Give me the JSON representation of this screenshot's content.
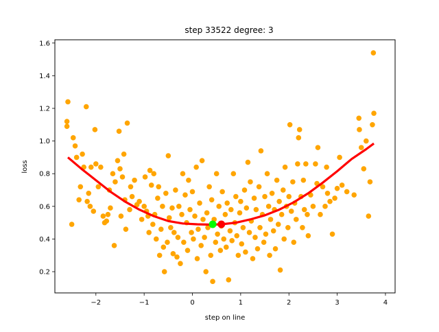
{
  "chart_data": {
    "type": "scatter",
    "title": "step 33522   degree: 3",
    "xlabel": "step on line",
    "ylabel": "loss",
    "xlim": [
      -2.85,
      4.2
    ],
    "ylim": [
      0.07,
      1.62
    ],
    "xticks": [
      -2,
      -1,
      0,
      1,
      2,
      3,
      4
    ],
    "xtick_labels": [
      "−2",
      "−1",
      "0",
      "1",
      "2",
      "3",
      "4"
    ],
    "yticks": [
      0.2,
      0.4,
      0.6,
      0.8,
      1.0,
      1.2,
      1.4,
      1.6
    ],
    "ytick_labels": [
      "0.2",
      "0.4",
      "0.6",
      "0.8",
      "1.0",
      "1.2",
      "1.4",
      "1.6"
    ],
    "grid": false,
    "colors": {
      "scatter": "#ffa500",
      "fit": "#ff0000",
      "green_marker": "#00ff00",
      "red_marker": "#ff0000"
    },
    "scatter_points": [
      [
        -2.6,
        1.12
      ],
      [
        -2.6,
        1.09
      ],
      [
        -2.58,
        1.24
      ],
      [
        -2.5,
        0.49
      ],
      [
        -2.47,
        1.02
      ],
      [
        -2.43,
        0.97
      ],
      [
        -2.4,
        0.9
      ],
      [
        -2.35,
        0.64
      ],
      [
        -2.32,
        0.72
      ],
      [
        -2.28,
        0.92
      ],
      [
        -2.25,
        0.84
      ],
      [
        -2.2,
        1.21
      ],
      [
        -2.18,
        0.63
      ],
      [
        -2.15,
        0.68
      ],
      [
        -2.12,
        0.6
      ],
      [
        -2.1,
        0.84
      ],
      [
        -2.05,
        0.57
      ],
      [
        -2.02,
        1.07
      ],
      [
        -2.0,
        0.86
      ],
      [
        -1.95,
        0.72
      ],
      [
        -1.9,
        0.84
      ],
      [
        -1.85,
        0.54
      ],
      [
        -1.82,
        0.5
      ],
      [
        -1.78,
        0.51
      ],
      [
        -1.75,
        0.55
      ],
      [
        -1.72,
        0.7
      ],
      [
        -1.7,
        0.59
      ],
      [
        -1.65,
        0.8
      ],
      [
        -1.62,
        0.36
      ],
      [
        -1.6,
        0.75
      ],
      [
        -1.55,
        0.88
      ],
      [
        -1.52,
        1.06
      ],
      [
        -1.5,
        0.83
      ],
      [
        -1.48,
        0.54
      ],
      [
        -1.45,
        0.78
      ],
      [
        -1.42,
        0.92
      ],
      [
        -1.4,
        0.64
      ],
      [
        -1.38,
        0.46
      ],
      [
        -1.35,
        1.11
      ],
      [
        -1.3,
        0.58
      ],
      [
        -1.28,
        0.72
      ],
      [
        -1.25,
        0.66
      ],
      [
        -1.2,
        0.76
      ],
      [
        -1.15,
        0.61
      ],
      [
        -1.1,
        0.63
      ],
      [
        -1.05,
        0.52
      ],
      [
        -1.0,
        0.6
      ],
      [
        -0.98,
        0.78
      ],
      [
        -0.95,
        0.57
      ],
      [
        -0.92,
        0.54
      ],
      [
        -0.9,
        0.44
      ],
      [
        -0.88,
        0.82
      ],
      [
        -0.85,
        0.73
      ],
      [
        -0.82,
        0.49
      ],
      [
        -0.8,
        0.8
      ],
      [
        -0.78,
        0.55
      ],
      [
        -0.75,
        0.4
      ],
      [
        -0.72,
        0.65
      ],
      [
        -0.7,
        0.72
      ],
      [
        -0.68,
        0.3
      ],
      [
        -0.65,
        0.46
      ],
      [
        -0.62,
        0.6
      ],
      [
        -0.6,
        0.35
      ],
      [
        -0.58,
        0.2
      ],
      [
        -0.55,
        0.68
      ],
      [
        -0.52,
        0.38
      ],
      [
        -0.5,
        0.91
      ],
      [
        -0.48,
        0.53
      ],
      [
        -0.45,
        0.47
      ],
      [
        -0.42,
        0.59
      ],
      [
        -0.4,
        0.31
      ],
      [
        -0.38,
        0.44
      ],
      [
        -0.35,
        0.7
      ],
      [
        -0.32,
        0.29
      ],
      [
        -0.3,
        0.41
      ],
      [
        -0.28,
        0.6
      ],
      [
        -0.25,
        0.25
      ],
      [
        -0.22,
        0.55
      ],
      [
        -0.2,
        0.8
      ],
      [
        -0.18,
        0.38
      ],
      [
        -0.15,
        0.67
      ],
      [
        -0.12,
        0.5
      ],
      [
        -0.1,
        0.33
      ],
      [
        -0.08,
        0.76
      ],
      [
        -0.05,
        0.58
      ],
      [
        -0.02,
        0.44
      ],
      [
        0.0,
        0.69
      ],
      [
        0.02,
        0.4
      ],
      [
        0.05,
        0.54
      ],
      [
        0.08,
        0.84
      ],
      [
        0.1,
        0.28
      ],
      [
        0.12,
        0.46
      ],
      [
        0.15,
        0.62
      ],
      [
        0.18,
        0.36
      ],
      [
        0.2,
        0.88
      ],
      [
        0.22,
        0.52
      ],
      [
        0.25,
        0.41
      ],
      [
        0.28,
        0.2
      ],
      [
        0.3,
        0.56
      ],
      [
        0.32,
        0.47
      ],
      [
        0.35,
        0.72
      ],
      [
        0.38,
        0.3
      ],
      [
        0.4,
        0.64
      ],
      [
        0.42,
        0.14
      ],
      [
        0.45,
        0.52
      ],
      [
        0.48,
        0.38
      ],
      [
        0.5,
        0.8
      ],
      [
        0.52,
        0.43
      ],
      [
        0.55,
        0.6
      ],
      [
        0.58,
        0.33
      ],
      [
        0.6,
        0.48
      ],
      [
        0.62,
        0.69
      ],
      [
        0.65,
        0.4
      ],
      [
        0.68,
        0.55
      ],
      [
        0.7,
        0.35
      ],
      [
        0.72,
        0.62
      ],
      [
        0.75,
        0.15
      ],
      [
        0.78,
        0.45
      ],
      [
        0.8,
        0.58
      ],
      [
        0.82,
        0.39
      ],
      [
        0.85,
        0.8
      ],
      [
        0.88,
        0.5
      ],
      [
        0.9,
        0.66
      ],
      [
        0.92,
        0.42
      ],
      [
        0.95,
        0.3
      ],
      [
        0.98,
        0.56
      ],
      [
        1.0,
        0.63
      ],
      [
        1.02,
        0.37
      ],
      [
        1.05,
        0.47
      ],
      [
        1.08,
        0.7
      ],
      [
        1.1,
        0.32
      ],
      [
        1.12,
        0.59
      ],
      [
        1.15,
        0.87
      ],
      [
        1.18,
        0.44
      ],
      [
        1.2,
        0.75
      ],
      [
        1.22,
        0.51
      ],
      [
        1.25,
        0.28
      ],
      [
        1.28,
        0.65
      ],
      [
        1.3,
        0.41
      ],
      [
        1.32,
        0.58
      ],
      [
        1.35,
        0.34
      ],
      [
        1.38,
        0.72
      ],
      [
        1.4,
        0.47
      ],
      [
        1.42,
        0.94
      ],
      [
        1.45,
        0.55
      ],
      [
        1.48,
        0.38
      ],
      [
        1.5,
        0.66
      ],
      [
        1.52,
        0.43
      ],
      [
        1.55,
        0.8
      ],
      [
        1.58,
        0.6
      ],
      [
        1.6,
        0.3
      ],
      [
        1.62,
        0.52
      ],
      [
        1.65,
        0.68
      ],
      [
        1.68,
        0.45
      ],
      [
        1.7,
        0.58
      ],
      [
        1.72,
        0.34
      ],
      [
        1.75,
        0.76
      ],
      [
        1.78,
        0.49
      ],
      [
        1.8,
        0.63
      ],
      [
        1.82,
        0.21
      ],
      [
        1.85,
        0.55
      ],
      [
        1.88,
        0.7
      ],
      [
        1.9,
        0.4
      ],
      [
        1.92,
        0.84
      ],
      [
        1.95,
        0.6
      ],
      [
        1.98,
        0.47
      ],
      [
        2.0,
        0.66
      ],
      [
        2.02,
        1.1
      ],
      [
        2.05,
        0.57
      ],
      [
        2.08,
        0.75
      ],
      [
        2.1,
        0.38
      ],
      [
        2.12,
        0.62
      ],
      [
        2.15,
        0.52
      ],
      [
        2.18,
        0.86
      ],
      [
        2.2,
        1.02
      ],
      [
        2.22,
        1.07
      ],
      [
        2.25,
        0.66
      ],
      [
        2.28,
        0.47
      ],
      [
        2.3,
        0.76
      ],
      [
        2.32,
        0.58
      ],
      [
        2.35,
        0.86
      ],
      [
        2.38,
        0.55
      ],
      [
        2.4,
        0.42
      ],
      [
        2.45,
        0.67
      ],
      [
        2.5,
        0.6
      ],
      [
        2.55,
        0.86
      ],
      [
        2.58,
        0.74
      ],
      [
        2.6,
        0.96
      ],
      [
        2.65,
        0.55
      ],
      [
        2.7,
        0.72
      ],
      [
        2.75,
        0.6
      ],
      [
        2.78,
        0.84
      ],
      [
        2.8,
        0.68
      ],
      [
        2.85,
        0.63
      ],
      [
        2.9,
        0.43
      ],
      [
        2.95,
        0.65
      ],
      [
        3.0,
        0.71
      ],
      [
        3.05,
        0.9
      ],
      [
        3.1,
        0.73
      ],
      [
        3.2,
        0.69
      ],
      [
        3.35,
        0.67
      ],
      [
        3.45,
        1.14
      ],
      [
        3.46,
        1.07
      ],
      [
        3.5,
        0.96
      ],
      [
        3.55,
        0.83
      ],
      [
        3.6,
        1.0
      ],
      [
        3.65,
        0.54
      ],
      [
        3.68,
        0.75
      ],
      [
        3.73,
        1.1
      ],
      [
        3.75,
        1.54
      ],
      [
        3.76,
        1.17
      ]
    ],
    "fit_curve": {
      "degree": 3,
      "x_range": [
        -2.58,
        3.76
      ],
      "points": [
        [
          -2.58,
          0.9
        ],
        [
          -2.3,
          0.83
        ],
        [
          -2.0,
          0.76
        ],
        [
          -1.7,
          0.69
        ],
        [
          -1.4,
          0.63
        ],
        [
          -1.1,
          0.58
        ],
        [
          -0.8,
          0.54
        ],
        [
          -0.5,
          0.51
        ],
        [
          -0.2,
          0.495
        ],
        [
          0.1,
          0.49
        ],
        [
          0.4,
          0.488
        ],
        [
          0.6,
          0.49
        ],
        [
          0.9,
          0.5
        ],
        [
          1.2,
          0.52
        ],
        [
          1.5,
          0.545
        ],
        [
          1.8,
          0.58
        ],
        [
          2.1,
          0.625
        ],
        [
          2.4,
          0.68
        ],
        [
          2.7,
          0.745
        ],
        [
          3.0,
          0.815
        ],
        [
          3.3,
          0.89
        ],
        [
          3.6,
          0.95
        ],
        [
          3.76,
          0.985
        ]
      ]
    },
    "markers": [
      {
        "name": "green",
        "x": 0.42,
        "y": 0.49,
        "color": "#00ff00"
      },
      {
        "name": "red",
        "x": 0.6,
        "y": 0.49,
        "color": "#ff0000"
      }
    ]
  }
}
